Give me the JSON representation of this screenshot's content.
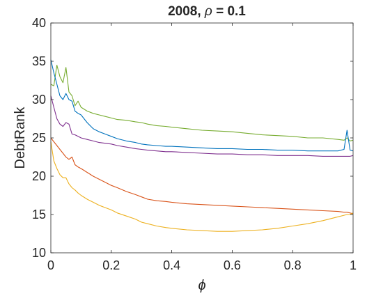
{
  "chart_data": {
    "type": "line",
    "title": {
      "prefix": "2008, ",
      "symbol": "ρ",
      "suffix": " = 0.1"
    },
    "xlabel": "ϕ",
    "ylabel": "DebtRank",
    "xlim": [
      0,
      1
    ],
    "ylim": [
      10,
      40
    ],
    "xticks": [
      0,
      0.2,
      0.4,
      0.6,
      0.8,
      1
    ],
    "xtick_labels": [
      "0",
      "0.2",
      "0.4",
      "0.6",
      "0.8",
      "1"
    ],
    "yticks": [
      10,
      15,
      20,
      25,
      30,
      35,
      40
    ],
    "ytick_labels": [
      "10",
      "15",
      "20",
      "25",
      "30",
      "35",
      "40"
    ],
    "grid": false,
    "legend": "none",
    "x": [
      0,
      0.01,
      0.02,
      0.03,
      0.04,
      0.05,
      0.06,
      0.07,
      0.08,
      0.09,
      0.1,
      0.12,
      0.14,
      0.16,
      0.18,
      0.2,
      0.22,
      0.25,
      0.28,
      0.3,
      0.32,
      0.35,
      0.38,
      0.4,
      0.45,
      0.5,
      0.55,
      0.6,
      0.65,
      0.7,
      0.75,
      0.8,
      0.85,
      0.9,
      0.95,
      0.97,
      0.98,
      0.99,
      1.0
    ],
    "series": [
      {
        "color": "#77AC30",
        "values": [
          32.0,
          31.8,
          34.5,
          33.0,
          32.2,
          34.2,
          31.0,
          30.5,
          29.2,
          29.8,
          29.0,
          28.5,
          28.2,
          28.0,
          27.8,
          27.6,
          27.4,
          27.3,
          27.1,
          27.0,
          26.8,
          26.6,
          26.5,
          26.4,
          26.2,
          26.0,
          25.9,
          25.8,
          25.6,
          25.4,
          25.3,
          25.2,
          25.0,
          25.0,
          24.8,
          24.7,
          25.0,
          24.6,
          24.7
        ]
      },
      {
        "color": "#0072BD",
        "values": [
          35.2,
          33.5,
          32.0,
          30.5,
          30.0,
          30.8,
          30.0,
          29.8,
          28.5,
          28.2,
          28.0,
          27.0,
          26.2,
          25.8,
          25.5,
          25.2,
          24.9,
          24.6,
          24.4,
          24.2,
          24.1,
          24.0,
          23.9,
          23.9,
          23.8,
          23.7,
          23.6,
          23.6,
          23.5,
          23.5,
          23.4,
          23.4,
          23.3,
          23.3,
          23.3,
          23.5,
          26.0,
          23.4,
          23.3
        ]
      },
      {
        "color": "#7E2F8E",
        "values": [
          30.5,
          29.0,
          27.5,
          26.8,
          26.5,
          27.0,
          26.8,
          25.5,
          25.4,
          25.2,
          25.0,
          24.8,
          24.6,
          24.4,
          24.3,
          24.2,
          24.0,
          23.8,
          23.6,
          23.5,
          23.4,
          23.3,
          23.2,
          23.2,
          23.1,
          23.0,
          22.9,
          22.9,
          22.8,
          22.8,
          22.7,
          22.7,
          22.7,
          22.6,
          22.6,
          22.6,
          22.6,
          22.6,
          22.7
        ]
      },
      {
        "color": "#D95319",
        "values": [
          25.0,
          24.5,
          24.0,
          23.5,
          23.0,
          22.5,
          22.2,
          22.5,
          21.5,
          21.2,
          21.0,
          20.5,
          20.0,
          19.6,
          19.2,
          18.8,
          18.5,
          18.0,
          17.6,
          17.3,
          17.0,
          16.8,
          16.7,
          16.6,
          16.4,
          16.3,
          16.2,
          16.1,
          16.0,
          15.9,
          15.8,
          15.7,
          15.6,
          15.5,
          15.4,
          15.3,
          15.3,
          15.2,
          15.1
        ]
      },
      {
        "color": "#EDB120",
        "values": [
          24.5,
          22.0,
          21.0,
          20.2,
          19.8,
          19.8,
          19.0,
          18.5,
          18.2,
          17.8,
          17.5,
          17.0,
          16.6,
          16.2,
          15.9,
          15.6,
          15.2,
          14.8,
          14.4,
          14.0,
          13.8,
          13.5,
          13.3,
          13.2,
          13.0,
          12.9,
          12.8,
          12.8,
          12.9,
          13.0,
          13.2,
          13.5,
          13.8,
          14.2,
          14.7,
          14.9,
          15.0,
          15.0,
          15.2
        ]
      }
    ]
  }
}
